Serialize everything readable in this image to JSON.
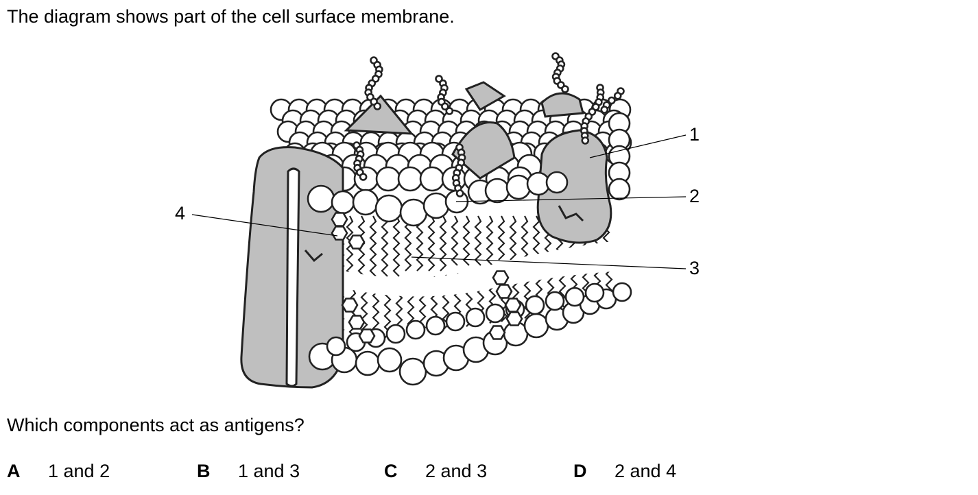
{
  "question": {
    "intro": "The diagram shows part of the cell surface membrane.",
    "prompt": "Which components act as antigens?"
  },
  "diagram": {
    "labels": [
      "1",
      "2",
      "3",
      "4"
    ]
  },
  "options": [
    {
      "letter": "A",
      "text": "1 and 2"
    },
    {
      "letter": "B",
      "text": "1 and 3"
    },
    {
      "letter": "C",
      "text": "2 and 3"
    },
    {
      "letter": "D",
      "text": "2 and 4"
    }
  ],
  "colors": {
    "protein_fill": "#bfbfbf",
    "outline": "#222222",
    "head_fill": "#ffffff"
  }
}
